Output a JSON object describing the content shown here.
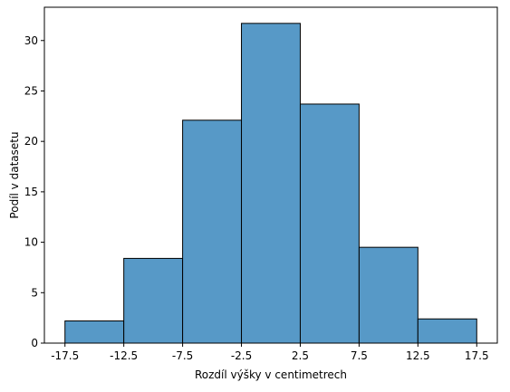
{
  "chart_data": {
    "type": "bar",
    "subtype": "histogram",
    "bin_edges": [
      -17.5,
      -12.5,
      -7.5,
      -2.5,
      2.5,
      7.5,
      12.5,
      17.5
    ],
    "values": [
      2.2,
      8.4,
      22.1,
      31.7,
      23.7,
      9.5,
      2.4
    ],
    "xlabel": "Rozdíl výšky v centimetrech",
    "ylabel": "Podíl v datasetu",
    "xlim": [
      -19.25,
      19.25
    ],
    "ylim": [
      0,
      33.3
    ],
    "xticks": [
      "-17.5",
      "-12.5",
      "-7.5",
      "-2.5",
      "2.5",
      "7.5",
      "12.5",
      "17.5"
    ],
    "yticks": [
      "0",
      "5",
      "10",
      "15",
      "20",
      "25",
      "30"
    ],
    "grid": false,
    "bar_color": "#5799c7",
    "edge_color": "#000000"
  }
}
